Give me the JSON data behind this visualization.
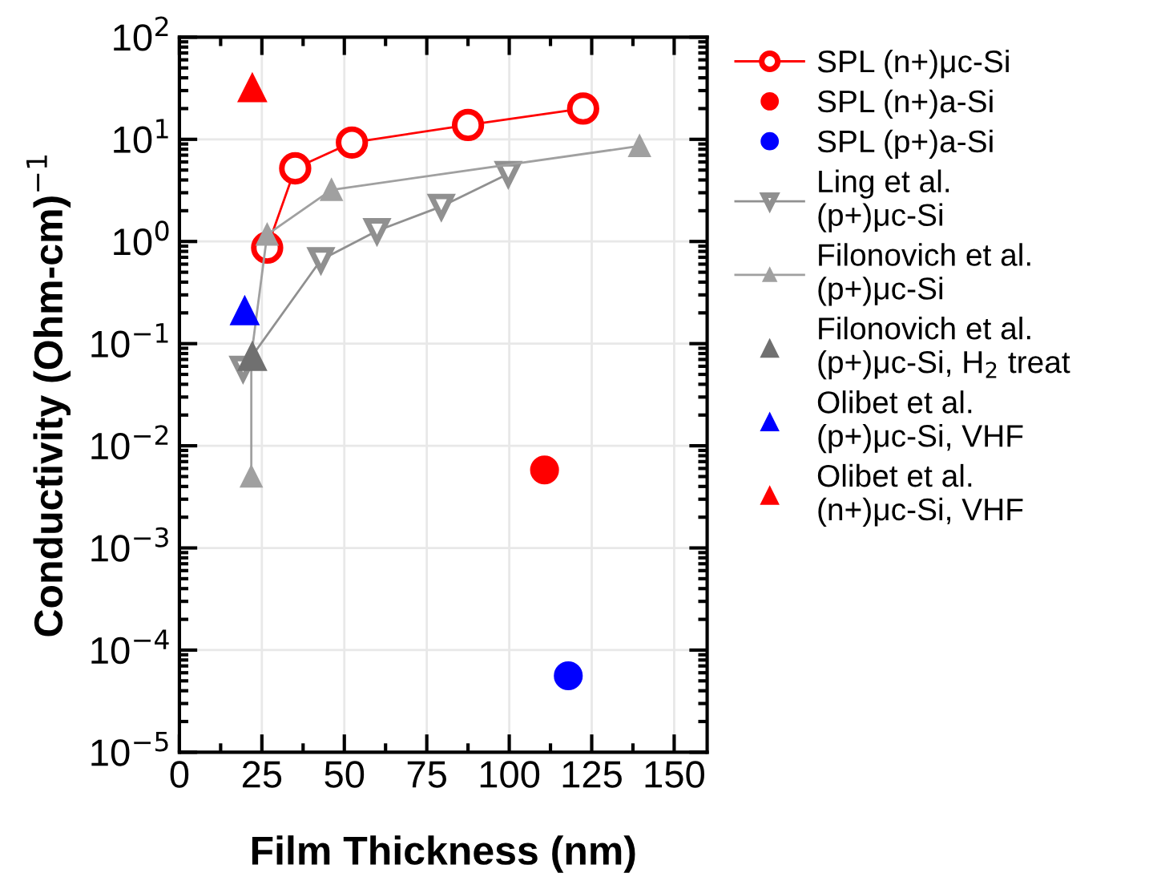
{
  "chart_data": {
    "type": "line",
    "xlabel": "Film Thickness (nm)",
    "ylabel": "Conductivity (Ohm-cm)$^{−1}$",
    "log": "y",
    "xlim": [
      0,
      160
    ],
    "xticks": [
      0,
      25,
      50,
      75,
      100,
      125,
      150
    ],
    "ylim": [
      1e-05,
      100
    ],
    "yticks": [
      {
        "value": 1e-05,
        "label": "10$^{−5}$"
      },
      {
        "value": 0.0001,
        "label": "10$^{−4}$"
      },
      {
        "value": 0.001,
        "label": "10$^{−3}$"
      },
      {
        "value": 0.01,
        "label": "10$^{−2}$"
      },
      {
        "value": 0.1,
        "label": "10$^{−1}$"
      },
      {
        "value": 1,
        "label": "10$^{0}$"
      },
      {
        "value": 10,
        "label": "10$^{1}$"
      },
      {
        "value": 100,
        "label": "10$^{2}$"
      }
    ],
    "grid": true,
    "legend": "right",
    "series": [
      {
        "name": "SPL (n+)μc-Si",
        "marker": "circle",
        "color": "#ff0000",
        "x": [
          26.6,
          35.1,
          52.3,
          87.5,
          122.4
        ],
        "values": [
          0.87,
          5.2,
          9.3,
          13.8,
          20
        ]
      },
      {
        "name": "SPL (n+)a-Si",
        "type": "scatter",
        "marker": "circle",
        "color": "#ff0000",
        "x": [
          110.7
        ],
        "values": [
          0.0058
        ]
      },
      {
        "name": "SPL (p+)a-Si",
        "type": "scatter",
        "marker": "circle",
        "color": "#0000ff",
        "x": [
          117.9
        ],
        "values": [
          5.6e-05
        ]
      },
      {
        "name": "Ling et al.\n(p+)μc-Si",
        "marker": "triangle_down",
        "color": "#909090",
        "x": [
          19.3,
          42.9,
          59.9,
          79.4,
          99.7
        ],
        "values": [
          0.057,
          0.66,
          1.27,
          2.2,
          4.6
        ]
      },
      {
        "name": "Filonovich et al.\n(p+)μc-Si",
        "marker": "triangle",
        "color": "#a0a0a0",
        "x": [
          21.8,
          21.8,
          26.6,
          46.1,
          139.5
        ],
        "values": [
          0.005,
          0.076,
          1.17,
          3.2,
          8.6
        ]
      },
      {
        "name": "Filonovich et al.\n(p+)μc-Si, H$_{2}$ treat",
        "type": "scatter",
        "marker": "triangle",
        "color": "#707070",
        "x": [
          22.1
        ],
        "values": [
          0.075
        ]
      },
      {
        "name": "Olibet et al.\n(p+)μc-Si, VHF",
        "type": "scatter",
        "marker": "triangle",
        "color": "#0000ff",
        "x": [
          19.8
        ],
        "values": [
          0.21
        ]
      },
      {
        "name": "Olibet et al.\n(n+)μc-Si, VHF",
        "type": "scatter",
        "marker": "triangle",
        "color": "#ff0000",
        "x": [
          22.1
        ],
        "values": [
          32
        ]
      }
    ]
  }
}
